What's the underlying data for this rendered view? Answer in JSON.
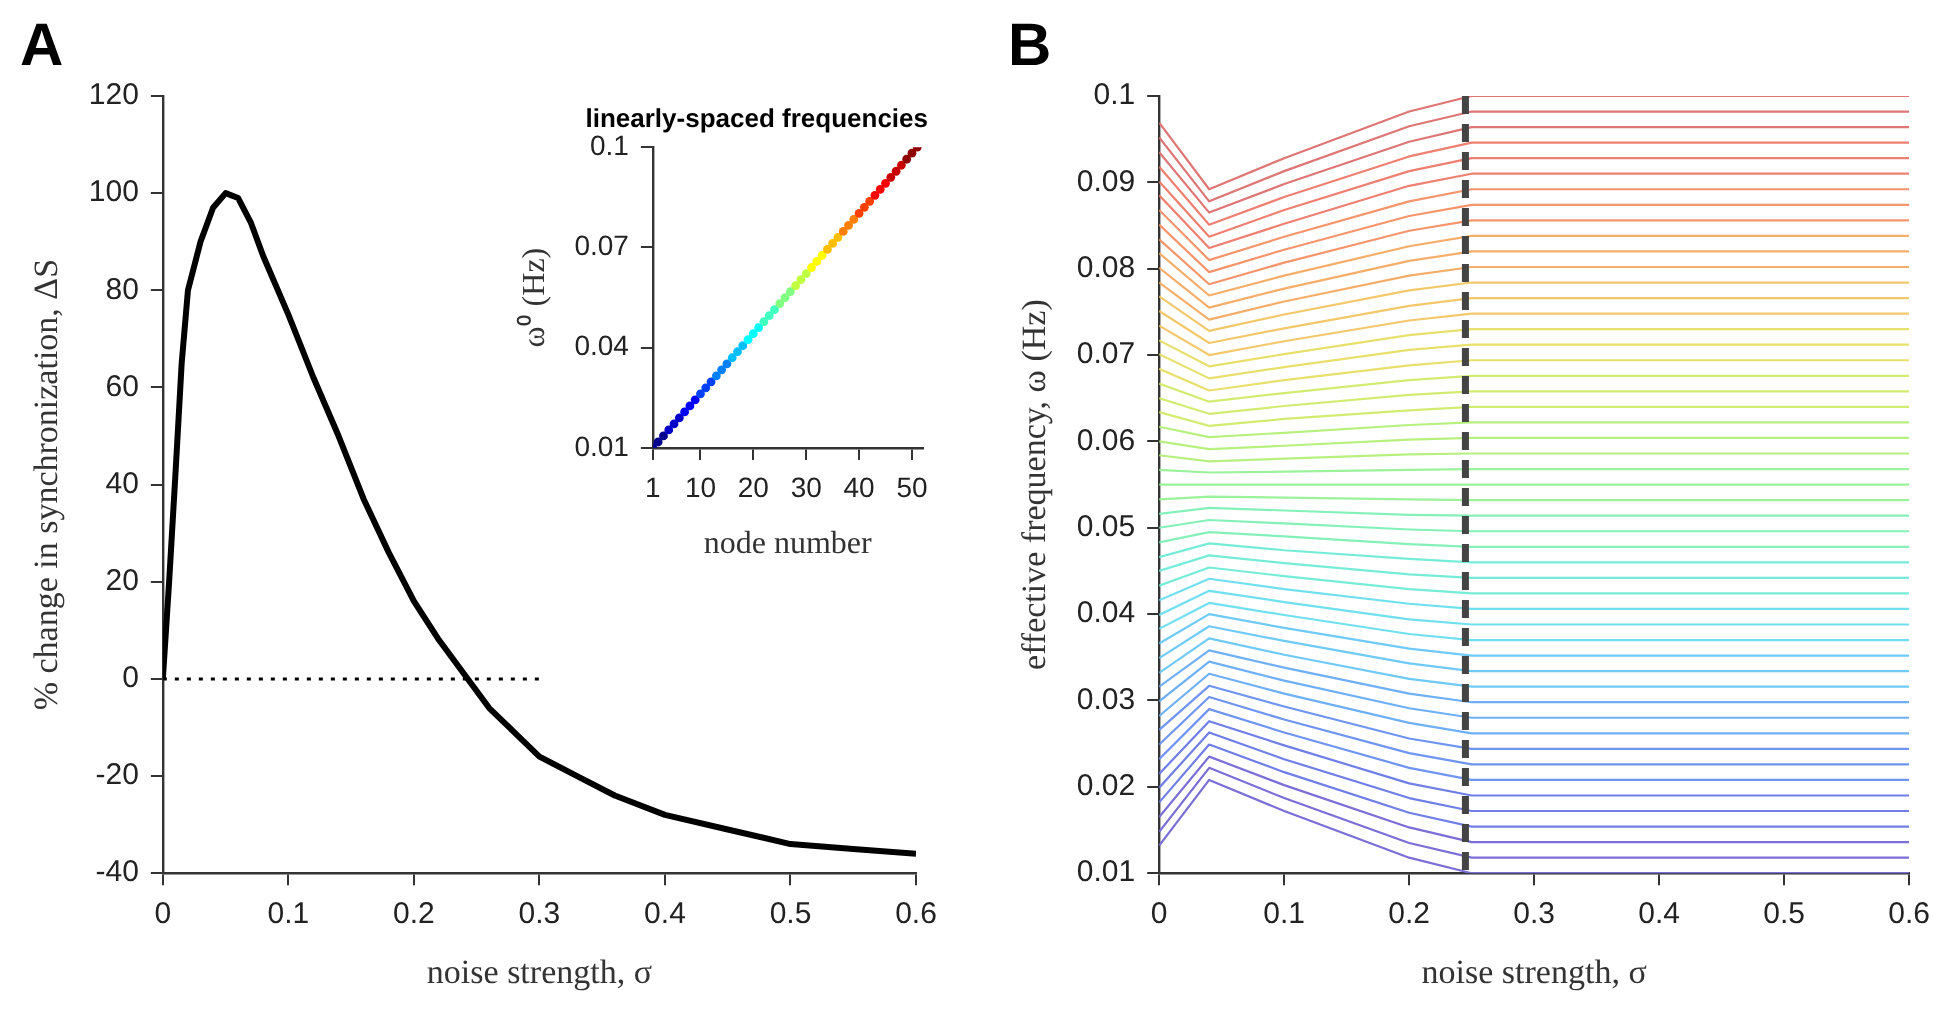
{
  "chart_data": [
    {
      "type": "line",
      "title": "A",
      "xlabel": "noise strength, σ",
      "ylabel": "% change in synchronization, ΔS",
      "xlim": [
        0,
        0.6
      ],
      "xticks": [
        0,
        0.1,
        0.2,
        0.3,
        0.4,
        0.5,
        0.6
      ],
      "ylim": [
        -40,
        120
      ],
      "yticks": [
        -40,
        -20,
        0,
        20,
        40,
        60,
        80,
        100,
        120
      ],
      "grid": false,
      "legend": false,
      "line_style": "solid",
      "x": [
        0,
        0.005,
        0.01,
        0.015,
        0.02,
        0.03,
        0.04,
        0.05,
        0.06,
        0.07,
        0.08,
        0.1,
        0.12,
        0.14,
        0.16,
        0.18,
        0.2,
        0.22,
        0.24,
        0.26,
        0.28,
        0.3,
        0.33,
        0.36,
        0.4,
        0.45,
        0.5,
        0.55,
        0.6
      ],
      "series": [
        {
          "color": "#000000",
          "values": [
            0,
            20,
            42,
            65,
            80,
            90,
            97,
            100,
            99,
            94,
            87,
            75,
            62,
            50,
            37,
            26,
            16,
            8,
            1,
            -6,
            -11,
            -16,
            -20,
            -24,
            -28,
            -31,
            -34,
            -35,
            -36
          ]
        },
        {
          "color": "#000000",
          "x": [
            0,
            0.3
          ],
          "values": [
            0,
            0
          ],
          "line_style": "dotted"
        }
      ]
    },
    {
      "type": "scatter",
      "title": "linearly-spaced frequencies",
      "xlabel": "node number",
      "ylabel": "ω⁰ (Hz)",
      "xlim": [
        1,
        52
      ],
      "xticks": [
        1,
        10,
        20,
        30,
        40,
        50
      ],
      "ylim": [
        0.01,
        0.1
      ],
      "yticks": [
        0.01,
        0.04,
        0.07,
        0.1
      ],
      "grid": false,
      "legend": false,
      "marker": "circle",
      "x": [
        1,
        2,
        3,
        4,
        5,
        6,
        7,
        8,
        9,
        10,
        11,
        12,
        13,
        14,
        15,
        16,
        17,
        18,
        19,
        20,
        21,
        22,
        23,
        24,
        25,
        26,
        27,
        28,
        29,
        30,
        31,
        32,
        33,
        34,
        35,
        36,
        37,
        38,
        39,
        40,
        41,
        42,
        43,
        44,
        45,
        46,
        47,
        48,
        49,
        50,
        51
      ],
      "values": [
        0.01,
        0.0118,
        0.0136,
        0.0154,
        0.0172,
        0.019,
        0.0208,
        0.0226,
        0.0244,
        0.0262,
        0.028,
        0.0298,
        0.0316,
        0.0334,
        0.0352,
        0.037,
        0.0388,
        0.0406,
        0.0424,
        0.0442,
        0.046,
        0.0478,
        0.0496,
        0.0514,
        0.0532,
        0.055,
        0.0568,
        0.0586,
        0.0604,
        0.0622,
        0.064,
        0.0658,
        0.0676,
        0.0694,
        0.0712,
        0.073,
        0.0748,
        0.0766,
        0.0784,
        0.0802,
        0.082,
        0.0838,
        0.0856,
        0.0874,
        0.0892,
        0.091,
        0.0928,
        0.0946,
        0.0964,
        0.0982,
        0.1
      ],
      "colors": [
        "#00008f",
        "#00008f",
        "#00008f",
        "#0000c8",
        "#0000c8",
        "#0000c8",
        "#0000ff",
        "#0000ff",
        "#0000ff",
        "#0040ff",
        "#0040ff",
        "#0040ff",
        "#0080ff",
        "#0080ff",
        "#0080ff",
        "#00bfff",
        "#00bfff",
        "#00bfff",
        "#00ffff",
        "#00ffff",
        "#00ffff",
        "#40ffbf",
        "#40ffbf",
        "#40ffbf",
        "#80ff80",
        "#80ff80",
        "#80ff80",
        "#bfff40",
        "#bfff40",
        "#bfff40",
        "#ffff00",
        "#ffff00",
        "#ffff00",
        "#ffbf00",
        "#ffbf00",
        "#ffbf00",
        "#ff8000",
        "#ff8000",
        "#ff8000",
        "#ff4000",
        "#ff4000",
        "#ff4000",
        "#ff0000",
        "#ff0000",
        "#ff0000",
        "#c80000",
        "#c80000",
        "#c80000",
        "#8f0000",
        "#8f0000",
        "#8f0000"
      ]
    },
    {
      "type": "line",
      "title": "B",
      "xlabel": "noise strength, σ",
      "ylabel": "effective frequency, ω (Hz)",
      "xlim": [
        0,
        0.6
      ],
      "xticks": [
        0,
        0.1,
        0.2,
        0.3,
        0.4,
        0.5,
        0.6
      ],
      "ylim": [
        0.01,
        0.1
      ],
      "yticks": [
        0.01,
        0.02,
        0.03,
        0.04,
        0.05,
        0.06,
        0.07,
        0.08,
        0.09,
        0.1
      ],
      "grid": false,
      "legend": false,
      "line_style": "solid",
      "ref_lines": [
        {
          "axis": "x",
          "value": 0.245,
          "color": "#444444",
          "line_style": "dashed"
        }
      ],
      "x": [
        0,
        0.04,
        0.1,
        0.2,
        0.25,
        0.6
      ],
      "series": [
        {
          "color": "#7a6fd6",
          "values": [
            0.0132,
            0.0208,
            0.0172,
            0.0118,
            0.01,
            0.01
          ]
        },
        {
          "color": "#7a6fd6",
          "values": [
            0.0148,
            0.0222,
            0.0187,
            0.0135,
            0.0118,
            0.0118
          ]
        },
        {
          "color": "#7a6fd6",
          "values": [
            0.0165,
            0.0235,
            0.0202,
            0.0153,
            0.0136,
            0.0136
          ]
        },
        {
          "color": "#6f7fe6",
          "values": [
            0.0182,
            0.0249,
            0.0217,
            0.017,
            0.0154,
            0.0154
          ]
        },
        {
          "color": "#6f7fe6",
          "values": [
            0.0199,
            0.0263,
            0.0232,
            0.0187,
            0.0172,
            0.0172
          ]
        },
        {
          "color": "#6f7fe6",
          "values": [
            0.0215,
            0.0276,
            0.0248,
            0.0204,
            0.019,
            0.019
          ]
        },
        {
          "color": "#6f95f0",
          "values": [
            0.0232,
            0.029,
            0.0263,
            0.0222,
            0.0208,
            0.0208
          ]
        },
        {
          "color": "#6f95f0",
          "values": [
            0.0249,
            0.0304,
            0.0278,
            0.0239,
            0.0226,
            0.0226
          ]
        },
        {
          "color": "#6f95f0",
          "values": [
            0.0266,
            0.0317,
            0.0293,
            0.0256,
            0.0244,
            0.0244
          ]
        },
        {
          "color": "#6fb0f5",
          "values": [
            0.0282,
            0.0331,
            0.0308,
            0.0274,
            0.0262,
            0.0262
          ]
        },
        {
          "color": "#6fb0f5",
          "values": [
            0.0299,
            0.0345,
            0.0323,
            0.0291,
            0.028,
            0.028
          ]
        },
        {
          "color": "#6fb0f5",
          "values": [
            0.0316,
            0.0358,
            0.0338,
            0.0308,
            0.0298,
            0.0298
          ]
        },
        {
          "color": "#6fcaf5",
          "values": [
            0.0332,
            0.0372,
            0.0353,
            0.0325,
            0.0316,
            0.0316
          ]
        },
        {
          "color": "#6fcaf5",
          "values": [
            0.0349,
            0.0386,
            0.0369,
            0.0343,
            0.0334,
            0.0334
          ]
        },
        {
          "color": "#6fcaf5",
          "values": [
            0.0366,
            0.04,
            0.0384,
            0.036,
            0.0352,
            0.0352
          ]
        },
        {
          "color": "#70e0ee",
          "values": [
            0.0383,
            0.0413,
            0.0399,
            0.0377,
            0.037,
            0.037
          ]
        },
        {
          "color": "#70e0ee",
          "values": [
            0.0399,
            0.0427,
            0.0414,
            0.0394,
            0.0388,
            0.0388
          ]
        },
        {
          "color": "#70e0ee",
          "values": [
            0.0416,
            0.0441,
            0.0429,
            0.0412,
            0.0406,
            0.0406
          ]
        },
        {
          "color": "#76ecd8",
          "values": [
            0.0433,
            0.0454,
            0.0444,
            0.0429,
            0.0424,
            0.0424
          ]
        },
        {
          "color": "#76ecd8",
          "values": [
            0.045,
            0.0468,
            0.0459,
            0.0446,
            0.0442,
            0.0442
          ]
        },
        {
          "color": "#76ecd8",
          "values": [
            0.0466,
            0.0482,
            0.0474,
            0.0464,
            0.046,
            0.046
          ]
        },
        {
          "color": "#85f0b8",
          "values": [
            0.0483,
            0.0495,
            0.049,
            0.0481,
            0.0478,
            0.0478
          ]
        },
        {
          "color": "#85f0b8",
          "values": [
            0.05,
            0.0509,
            0.0505,
            0.0498,
            0.0496,
            0.0496
          ]
        },
        {
          "color": "#85f0b8",
          "values": [
            0.0516,
            0.0523,
            0.052,
            0.0515,
            0.0514,
            0.0514
          ]
        },
        {
          "color": "#9cf29a",
          "values": [
            0.0533,
            0.0536,
            0.0535,
            0.0533,
            0.0532,
            0.0532
          ]
        },
        {
          "color": "#9cf29a",
          "values": [
            0.055,
            0.055,
            0.055,
            0.055,
            0.055,
            0.055
          ]
        },
        {
          "color": "#9cf29a",
          "values": [
            0.0567,
            0.0564,
            0.0565,
            0.0567,
            0.0568,
            0.0568
          ]
        },
        {
          "color": "#b8f07f",
          "values": [
            0.0584,
            0.0577,
            0.058,
            0.0585,
            0.0586,
            0.0586
          ]
        },
        {
          "color": "#b8f07f",
          "values": [
            0.06,
            0.0591,
            0.0595,
            0.0602,
            0.0604,
            0.0604
          ]
        },
        {
          "color": "#b8f07f",
          "values": [
            0.0617,
            0.0605,
            0.061,
            0.0619,
            0.0622,
            0.0622
          ]
        },
        {
          "color": "#d2ec72",
          "values": [
            0.0634,
            0.0618,
            0.0626,
            0.0636,
            0.064,
            0.064
          ]
        },
        {
          "color": "#d2ec72",
          "values": [
            0.065,
            0.0632,
            0.0641,
            0.0654,
            0.0658,
            0.0658
          ]
        },
        {
          "color": "#d2ec72",
          "values": [
            0.0667,
            0.0646,
            0.0656,
            0.0671,
            0.0676,
            0.0676
          ]
        },
        {
          "color": "#e8e06c",
          "values": [
            0.0684,
            0.0659,
            0.0671,
            0.0688,
            0.0694,
            0.0694
          ]
        },
        {
          "color": "#e8e06c",
          "values": [
            0.0701,
            0.0673,
            0.0686,
            0.0706,
            0.0712,
            0.0712
          ]
        },
        {
          "color": "#e8e06c",
          "values": [
            0.0717,
            0.0687,
            0.0701,
            0.0723,
            0.073,
            0.073
          ]
        },
        {
          "color": "#f2c86a",
          "values": [
            0.0734,
            0.07,
            0.0716,
            0.074,
            0.0748,
            0.0748
          ]
        },
        {
          "color": "#f2c86a",
          "values": [
            0.0751,
            0.0714,
            0.0731,
            0.0757,
            0.0766,
            0.0766
          ]
        },
        {
          "color": "#f2c86a",
          "values": [
            0.0768,
            0.0728,
            0.0747,
            0.0775,
            0.0784,
            0.0784
          ]
        },
        {
          "color": "#f5ae6a",
          "values": [
            0.0784,
            0.0741,
            0.0762,
            0.0792,
            0.0802,
            0.0802
          ]
        },
        {
          "color": "#f5ae6a",
          "values": [
            0.0801,
            0.0755,
            0.0777,
            0.0809,
            0.082,
            0.082
          ]
        },
        {
          "color": "#f5ae6a",
          "values": [
            0.0818,
            0.0769,
            0.0792,
            0.0826,
            0.0838,
            0.0838
          ]
        },
        {
          "color": "#f4956c",
          "values": [
            0.0834,
            0.0782,
            0.0807,
            0.0844,
            0.0856,
            0.0856
          ]
        },
        {
          "color": "#f4956c",
          "values": [
            0.0851,
            0.0796,
            0.0822,
            0.0861,
            0.0874,
            0.0874
          ]
        },
        {
          "color": "#f4956c",
          "values": [
            0.0868,
            0.081,
            0.0837,
            0.0878,
            0.0892,
            0.0892
          ]
        },
        {
          "color": "#ee8072",
          "values": [
            0.0885,
            0.0824,
            0.0852,
            0.0896,
            0.091,
            0.091
          ]
        },
        {
          "color": "#ee8072",
          "values": [
            0.0901,
            0.0837,
            0.0868,
            0.0913,
            0.0928,
            0.0928
          ]
        },
        {
          "color": "#ee8072",
          "values": [
            0.0918,
            0.0851,
            0.0883,
            0.093,
            0.0946,
            0.0946
          ]
        },
        {
          "color": "#de7676",
          "values": [
            0.0935,
            0.0865,
            0.0898,
            0.0947,
            0.0964,
            0.0964
          ]
        },
        {
          "color": "#de7676",
          "values": [
            0.0952,
            0.0878,
            0.0913,
            0.0965,
            0.0982,
            0.0982
          ]
        },
        {
          "color": "#de7676",
          "values": [
            0.0969,
            0.0892,
            0.0928,
            0.0982,
            0.1,
            0.1
          ]
        }
      ]
    }
  ]
}
